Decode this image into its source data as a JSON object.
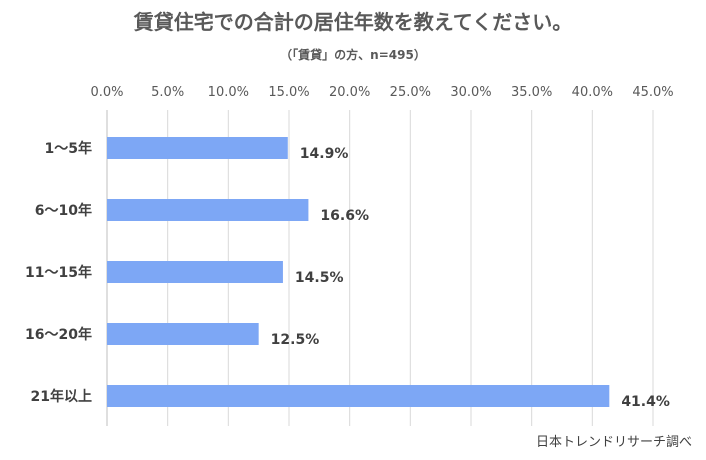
{
  "chart_data": {
    "type": "bar",
    "orientation": "horizontal",
    "title": "賃貸住宅での合計の居住年数を教えてください。",
    "subtitle": "（「賃貸」の方、n=495）",
    "categories": [
      "1～5年",
      "6～10年",
      "11～15年",
      "16～20年",
      "21年以上"
    ],
    "values": [
      14.9,
      16.6,
      14.5,
      12.5,
      41.4
    ],
    "value_labels": [
      "14.9%",
      "16.6%",
      "14.5%",
      "12.5%",
      "41.4%"
    ],
    "xlim": [
      0,
      45
    ],
    "x_ticks": [
      "0.0%",
      "5.0%",
      "10.0%",
      "15.0%",
      "20.0%",
      "25.0%",
      "30.0%",
      "35.0%",
      "40.0%",
      "45.0%"
    ],
    "x_axis_position": "top",
    "grid": true,
    "bar_color": "#7da7f5",
    "gridline_color": "#d9d9d9",
    "text_color": "#404040"
  },
  "source": "日本トレンドリサーチ調べ"
}
